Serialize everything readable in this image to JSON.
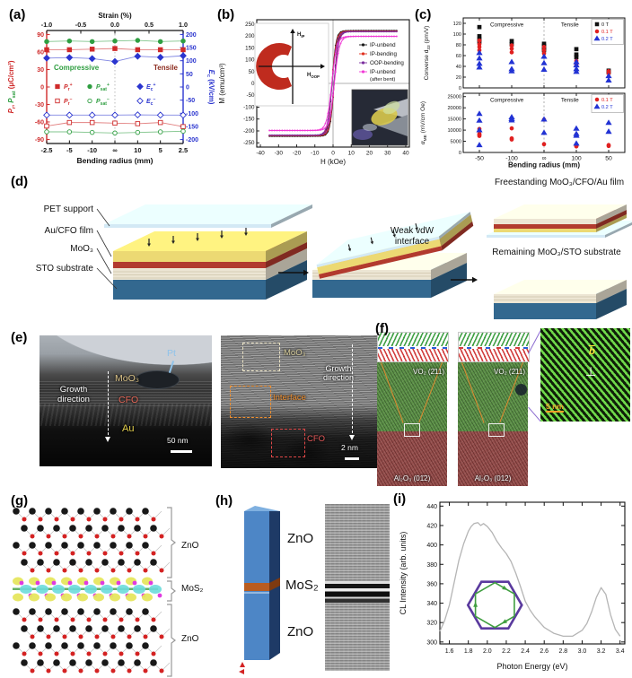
{
  "figure": {
    "panel_labels": {
      "a": "(a)",
      "b": "(b)",
      "c": "(c)",
      "d": "(d)",
      "e": "(e)",
      "f": "(f)",
      "g": "(g)",
      "h": "(h)",
      "i": "(i)"
    }
  },
  "panel_d": {
    "layer_labels": [
      "PET support",
      "Au/CFO film",
      "MoO₃",
      "STO substrate"
    ],
    "interface_label": "Weak vdW interface",
    "result_top": "Freestanding MoO₃/CFO/Au film",
    "result_bottom": "Remaining MoO₃/STO substrate",
    "colors": {
      "pet": "#d3e9f5",
      "au": "#ecd973",
      "cfo": "#b23a2e",
      "moo3": "#ece5d3",
      "sto": "#33688f"
    }
  },
  "panel_e": {
    "left": {
      "pt": "Pt",
      "moo3": "MoO₃",
      "cfo": "CFO",
      "au": "Au",
      "growth": "Growth direction",
      "scale": "50 nm"
    },
    "right": {
      "moo3": "MoO₃",
      "interface": "Interface",
      "cfo": "CFO",
      "growth": "Growth direction",
      "scale": "2 nm"
    }
  },
  "panel_f": {
    "img1": {
      "top": "VO₂ (2̄11)",
      "bottom": "Al₂O₃ (01̄2)"
    },
    "img2": {
      "top": "VO₂ (2̄11)",
      "bottom": "Al₂O₃ (012)"
    },
    "zoom": {
      "burgers": "b",
      "dislocation": "⊥",
      "scale": "5 nm"
    }
  },
  "panel_g": {
    "brackets": [
      "ZnO",
      "MoS₂",
      "ZnO"
    ]
  },
  "panel_h": {
    "labels": [
      "ZnO",
      "MoS₂",
      "ZnO"
    ]
  },
  "chart_data": [
    {
      "id": "panel-a",
      "type": "line",
      "top_axis": {
        "title": "Strain (%)",
        "ticks": [
          "-1.0",
          "-0.5",
          "0.0",
          "0.5",
          "1.0"
        ]
      },
      "x_axis": {
        "title": "Bending radius (mm)",
        "ticks": [
          "-2.5",
          "-5",
          "-10",
          "∞",
          "10",
          "5",
          "2.5"
        ]
      },
      "left_axis": {
        "title_segs": [
          {
            "t": "P",
            "i": 1,
            "c": "#cf2b2b"
          },
          {
            "t": "r",
            "sub": 1,
            "c": "#cf2b2b"
          },
          {
            "t": ", ",
            "c": "#cf2b2b"
          },
          {
            "t": "P",
            "i": 1,
            "c": "#2f9e41"
          },
          {
            "t": "sat",
            "sub": 1,
            "c": "#2f9e41"
          },
          {
            "t": " (μC/cm²)",
            "c": "#cf2b2b"
          }
        ],
        "ticks": [
          90,
          60,
          30,
          0,
          -30,
          -60,
          -90
        ],
        "range": [
          -97,
          97
        ],
        "color": "#cf2b2b"
      },
      "right_axis": {
        "title_segs": [
          {
            "t": "E",
            "i": 1
          },
          {
            "t": "c",
            "sub": 1
          },
          {
            "t": " (kV/cm)"
          }
        ],
        "ticks": [
          200,
          150,
          100,
          50,
          0,
          -50,
          -100,
          -150,
          -200
        ],
        "range": [
          -215,
          215
        ],
        "color": "#2b35cf"
      },
      "zones": [
        {
          "text": "Compressive",
          "color": "#2f9e41"
        },
        {
          "text": "Tensile",
          "color": "#8c2b1f"
        }
      ],
      "series": [
        {
          "segs": [
            {
              "t": "P",
              "i": 1
            },
            {
              "t": "r",
              "sub": 1
            },
            {
              "t": "+",
              "sup": 1
            }
          ],
          "axis": "left",
          "marker": "square",
          "fill": true,
          "color": "#cf2b2b",
          "values": [
            64,
            64,
            65,
            66,
            64,
            64,
            64
          ]
        },
        {
          "segs": [
            {
              "t": "P",
              "i": 1
            },
            {
              "t": "sat",
              "sub": 1
            },
            {
              "t": "+",
              "sup": 1
            }
          ],
          "axis": "left",
          "marker": "circle",
          "fill": true,
          "color": "#2f9e41",
          "values": [
            78,
            79,
            78,
            79,
            80,
            78,
            79
          ]
        },
        {
          "segs": [
            {
              "t": "E",
              "i": 1
            },
            {
              "t": "c",
              "sub": 1
            },
            {
              "t": "+",
              "sup": 1
            }
          ],
          "axis": "right",
          "marker": "diamond",
          "fill": true,
          "color": "#2b35cf",
          "values": [
            110,
            112,
            108,
            97,
            117,
            113,
            119
          ]
        },
        {
          "segs": [
            {
              "t": "P",
              "i": 1
            },
            {
              "t": "r",
              "sub": 1
            },
            {
              "t": "−",
              "sup": 1
            }
          ],
          "axis": "left",
          "marker": "square",
          "fill": false,
          "color": "#cf2b2b",
          "values": [
            -67,
            -61,
            -61,
            -62,
            -63,
            -61,
            -68
          ]
        },
        {
          "segs": [
            {
              "t": "P",
              "i": 1
            },
            {
              "t": "sat",
              "sub": 1
            },
            {
              "t": "−",
              "sup": 1
            }
          ],
          "axis": "left",
          "marker": "circle",
          "fill": false,
          "color": "#2f9e41",
          "values": [
            -77,
            -77,
            -78,
            -79,
            -78,
            -77,
            -76
          ]
        },
        {
          "segs": [
            {
              "t": "E",
              "i": 1
            },
            {
              "t": "c",
              "sub": 1
            },
            {
              "t": "−",
              "sup": 1
            }
          ],
          "axis": "right",
          "marker": "diamond",
          "fill": false,
          "color": "#2b35cf",
          "values": [
            -107,
            -107,
            -107,
            -107,
            -106,
            -107,
            -107
          ]
        }
      ]
    },
    {
      "id": "panel-b",
      "type": "hysteresis",
      "x_axis": {
        "title": "H (kOe)",
        "ticks": [
          -40,
          -30,
          -20,
          -10,
          0,
          10,
          20,
          30,
          40
        ],
        "range": [
          -42,
          42
        ]
      },
      "y_axis": {
        "title": "M (emu/cm³)",
        "ticks": [
          250,
          200,
          150,
          100,
          50,
          0,
          -50,
          -100,
          -150,
          -200,
          -250
        ],
        "range": [
          -268,
          268
        ]
      },
      "series": [
        {
          "name": "IP-unbend",
          "color": "#1a1a1a",
          "saturation": 222,
          "coercive_kOe": 0.6,
          "width_kOe": 2.2
        },
        {
          "name": "IP-bending",
          "color": "#e03020",
          "saturation": 220,
          "coercive_kOe": 0.6,
          "width_kOe": 2.4
        },
        {
          "name": "OOP-bending",
          "color": "#7b2e9e",
          "saturation": 218,
          "coercive_kOe": 0.5,
          "width_kOe": 2.6
        },
        {
          "name": "IP-unbend",
          "name2": "(after bent)",
          "color": "#f23ad6",
          "saturation": 198,
          "coercive_kOe": 0.7,
          "width_kOe": 2.8
        }
      ],
      "inset": {
        "h_ip_main": "H",
        "h_ip_sub": "IP",
        "h_oop_main": "H",
        "h_oop_sub": "OOP"
      }
    },
    {
      "id": "panel-c-top",
      "type": "scatter",
      "y_axis": {
        "title_segs": [
          {
            "t": "Converse d",
            "i": 0
          },
          {
            "t": "33",
            "sub": 1
          },
          {
            "t": " (pm/V)"
          }
        ],
        "ticks": [
          120,
          100,
          80,
          60,
          40,
          20,
          0
        ],
        "range": [
          0,
          130
        ]
      },
      "x_categories": [
        "-50",
        "-100",
        "∞",
        "100",
        "50"
      ],
      "zones": [
        "Compressive",
        "Tensile"
      ],
      "legend": [
        {
          "label": "0 T",
          "color": "#111111",
          "marker": "square"
        },
        {
          "label": "0.1 T",
          "color": "#e02020",
          "marker": "circle"
        },
        {
          "label": "0.2 T",
          "color": "#2233d4",
          "marker": "triangle"
        }
      ],
      "series": [
        {
          "name": "0 T",
          "color": "#111111",
          "marker": "square",
          "points": [
            [
              0,
              113
            ],
            [
              0,
              96
            ],
            [
              0,
              90
            ],
            [
              0,
              86
            ],
            [
              1,
              87
            ],
            [
              1,
              81
            ],
            [
              2,
              82
            ],
            [
              2,
              78
            ],
            [
              2,
              73
            ],
            [
              2,
              70
            ],
            [
              3,
              72
            ],
            [
              3,
              62
            ],
            [
              3,
              57
            ],
            [
              4,
              32
            ],
            [
              4,
              29
            ]
          ]
        },
        {
          "name": "0.1 T",
          "color": "#e02020",
          "marker": "circle",
          "points": [
            [
              0,
              88
            ],
            [
              0,
              81
            ],
            [
              0,
              76
            ],
            [
              0,
              70
            ],
            [
              1,
              79
            ],
            [
              1,
              73
            ],
            [
              1,
              66
            ],
            [
              2,
              76
            ],
            [
              2,
              70
            ],
            [
              2,
              64
            ],
            [
              3,
              50
            ],
            [
              3,
              45
            ],
            [
              3,
              42
            ],
            [
              4,
              31
            ],
            [
              4,
              27
            ]
          ]
        },
        {
          "name": "0.2 T",
          "color": "#2233d4",
          "marker": "triangle",
          "points": [
            [
              0,
              65
            ],
            [
              0,
              55
            ],
            [
              0,
              45
            ],
            [
              0,
              38
            ],
            [
              1,
              48
            ],
            [
              1,
              35
            ],
            [
              1,
              31
            ],
            [
              2,
              58
            ],
            [
              2,
              46
            ],
            [
              2,
              34
            ],
            [
              3,
              48
            ],
            [
              3,
              42
            ],
            [
              3,
              35
            ],
            [
              3,
              30
            ],
            [
              4,
              22
            ],
            [
              4,
              14
            ]
          ]
        }
      ]
    },
    {
      "id": "panel-c-bottom",
      "type": "scatter",
      "y_axis": {
        "title_segs": [
          {
            "t": "α",
            "i": 1
          },
          {
            "t": "ME",
            "sub": 1
          },
          {
            "t": " (mV/cm Oe)"
          }
        ],
        "ticks": [
          25000,
          20000,
          15000,
          10000,
          5000,
          0
        ],
        "range": [
          0,
          26500
        ]
      },
      "x_axis_title": "Bending radius  (mm)",
      "x_categories": [
        "-50",
        "-100",
        "∞",
        "100",
        "50"
      ],
      "zones": [
        "Compressive",
        "Tensile"
      ],
      "legend": [
        {
          "label": "0.1 T",
          "color": "#e02020",
          "marker": "circle"
        },
        {
          "label": "0.2 T",
          "color": "#2233d4",
          "marker": "triangle"
        }
      ],
      "series": [
        {
          "name": "0.1 T",
          "color": "#e02020",
          "marker": "circle",
          "points": [
            [
              0,
              10500
            ],
            [
              0,
              8300
            ],
            [
              0,
              7900
            ],
            [
              0,
              7400
            ],
            [
              1,
              10800
            ],
            [
              1,
              6300
            ],
            [
              1,
              5800
            ],
            [
              2,
              14700
            ],
            [
              2,
              3700
            ],
            [
              3,
              8000
            ],
            [
              3,
              3500
            ],
            [
              3,
              3000
            ],
            [
              3,
              2700
            ],
            [
              4,
              3300
            ],
            [
              4,
              2900
            ]
          ]
        },
        {
          "name": "0.2 T",
          "color": "#2233d4",
          "marker": "triangle",
          "points": [
            [
              0,
              17300
            ],
            [
              0,
              14300
            ],
            [
              0,
              10000
            ],
            [
              0,
              3300
            ],
            [
              1,
              15800
            ],
            [
              1,
              15000
            ],
            [
              1,
              14400
            ],
            [
              2,
              14800
            ],
            [
              2,
              8800
            ],
            [
              3,
              10700
            ],
            [
              3,
              8300
            ],
            [
              3,
              7500
            ],
            [
              3,
              4000
            ],
            [
              4,
              13300
            ],
            [
              4,
              9300
            ]
          ]
        }
      ]
    },
    {
      "id": "panel-i",
      "type": "line",
      "x_axis": {
        "title": "Photon Energy (eV)",
        "ticks": [
          "1.6",
          "1.8",
          "2.0",
          "2.2",
          "2.4",
          "2.6",
          "2.8",
          "3.0",
          "3.2",
          "3.4"
        ],
        "range": [
          1.5,
          3.45
        ]
      },
      "y_axis": {
        "title": "CL Intensity (arb. units)",
        "ticks": [
          440,
          420,
          400,
          380,
          360,
          340,
          320,
          300
        ],
        "range": [
          298,
          444
        ]
      },
      "line_color": "#b5b5b5",
      "points": [
        [
          1.5,
          311
        ],
        [
          1.55,
          322
        ],
        [
          1.6,
          338
        ],
        [
          1.65,
          361
        ],
        [
          1.7,
          384
        ],
        [
          1.75,
          401
        ],
        [
          1.8,
          414
        ],
        [
          1.83,
          419
        ],
        [
          1.86,
          422
        ],
        [
          1.9,
          423
        ],
        [
          1.93,
          420
        ],
        [
          1.96,
          422
        ],
        [
          2.0,
          419
        ],
        [
          2.05,
          413
        ],
        [
          2.1,
          404
        ],
        [
          2.15,
          397
        ],
        [
          2.2,
          391
        ],
        [
          2.25,
          383
        ],
        [
          2.3,
          371
        ],
        [
          2.35,
          357
        ],
        [
          2.4,
          342
        ],
        [
          2.45,
          333
        ],
        [
          2.5,
          326
        ],
        [
          2.6,
          315
        ],
        [
          2.7,
          309
        ],
        [
          2.8,
          306
        ],
        [
          2.9,
          306
        ],
        [
          3.0,
          312
        ],
        [
          3.05,
          319
        ],
        [
          3.1,
          331
        ],
        [
          3.15,
          346
        ],
        [
          3.2,
          356
        ],
        [
          3.25,
          349
        ],
        [
          3.3,
          328
        ],
        [
          3.35,
          313
        ],
        [
          3.4,
          306
        ]
      ],
      "inset": {
        "outer_color": "#5a3a9e",
        "inner_color": "#3f9e3f"
      }
    }
  ]
}
